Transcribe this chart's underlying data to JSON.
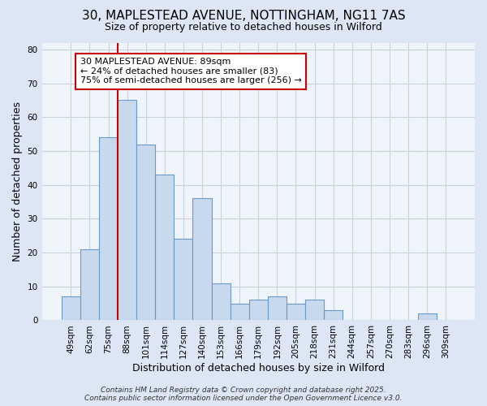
{
  "title_line1": "30, MAPLESTEAD AVENUE, NOTTINGHAM, NG11 7AS",
  "title_line2": "Size of property relative to detached houses in Wilford",
  "xlabel": "Distribution of detached houses by size in Wilford",
  "ylabel": "Number of detached properties",
  "bar_labels": [
    "49sqm",
    "62sqm",
    "75sqm",
    "88sqm",
    "101sqm",
    "114sqm",
    "127sqm",
    "140sqm",
    "153sqm",
    "166sqm",
    "179sqm",
    "192sqm",
    "205sqm",
    "218sqm",
    "231sqm",
    "244sqm",
    "257sqm",
    "270sqm",
    "283sqm",
    "296sqm",
    "309sqm"
  ],
  "bar_values": [
    7,
    21,
    54,
    65,
    52,
    43,
    24,
    36,
    11,
    5,
    6,
    7,
    5,
    6,
    3,
    0,
    0,
    0,
    0,
    2,
    0
  ],
  "bar_color": "#c8d9ee",
  "bar_edge_color": "#6699cc",
  "red_line_x": 2.5,
  "red_line_color": "#cc0000",
  "ylim": [
    0,
    82
  ],
  "yticks": [
    0,
    10,
    20,
    30,
    40,
    50,
    60,
    70,
    80
  ],
  "annotation_text": "30 MAPLESTEAD AVENUE: 89sqm\n← 24% of detached houses are smaller (83)\n75% of semi-detached houses are larger (256) →",
  "annotation_box_facecolor": "#ffffff",
  "annotation_box_edgecolor": "#cc0000",
  "footer_text": "Contains HM Land Registry data © Crown copyright and database right 2025.\nContains public sector information licensed under the Open Government Licence v3.0.",
  "fig_facecolor": "#dce6f5",
  "plot_facecolor": "#f0f4fb",
  "grid_color": "#c8d2e0",
  "title1_fontsize": 11,
  "title2_fontsize": 9,
  "axis_label_fontsize": 9,
  "tick_fontsize": 7.5,
  "annotation_fontsize": 8,
  "footer_fontsize": 6.5
}
